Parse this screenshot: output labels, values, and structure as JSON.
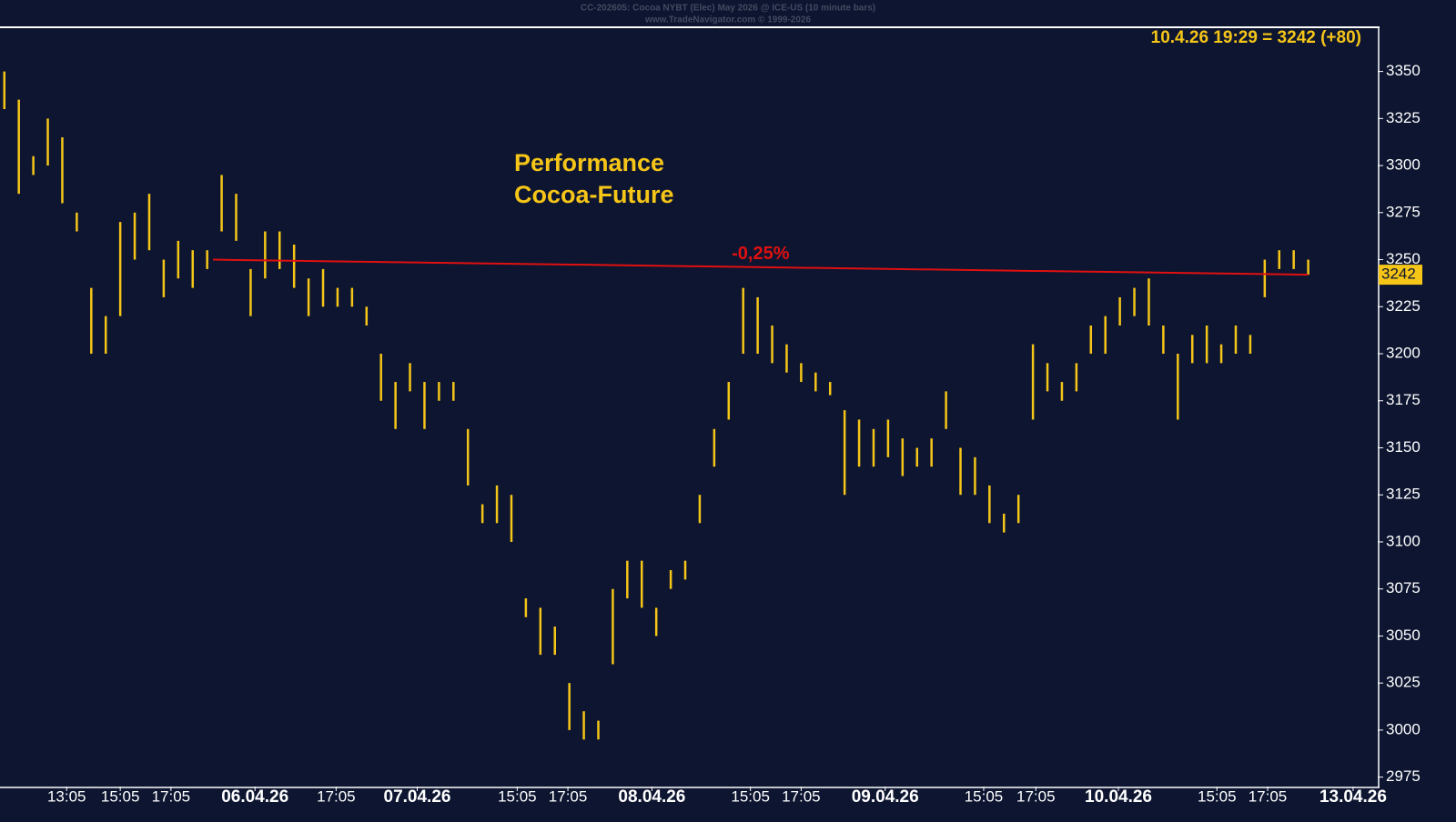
{
  "chart_data": {
    "type": "range_bar",
    "title": "CC-202605: Cocoa NYBT (Elec) May 2026 @ ICE-US  (10 minute bars)",
    "subtitle": "www.TradeNavigator.com © 1999-2026",
    "last_quote": "10.4.26 19:29 = 3242 (+80)",
    "price_marker": 3242,
    "annotation": [
      "Performance",
      "Cocoa-Future"
    ],
    "color": "#f5c518",
    "high": [
      3350,
      3335,
      3305,
      3325,
      3315,
      3275,
      3235,
      3220,
      3270,
      3275,
      3285,
      3250,
      3260,
      3255,
      3255,
      3295,
      3285,
      3245,
      3265,
      3265,
      3258,
      3240,
      3245,
      3235,
      3235,
      3225,
      3200,
      3185,
      3195,
      3185,
      3185,
      3185,
      3160,
      3120,
      3130,
      3125,
      3070,
      3065,
      3055,
      3025,
      3010,
      3005,
      3075,
      3090,
      3090,
      3065,
      3085,
      3090,
      3125,
      3160,
      3185,
      3235,
      3230,
      3215,
      3205,
      3195,
      3190,
      3185,
      3170,
      3165,
      3160,
      3165,
      3155,
      3150,
      3155,
      3180,
      3150,
      3145,
      3130,
      3115,
      3125,
      3205,
      3195,
      3185,
      3195,
      3215,
      3220,
      3230,
      3235,
      3240,
      3215,
      3200,
      3210,
      3215,
      3205,
      3215,
      3210,
      3250,
      3255,
      3255,
      3250
    ],
    "low": [
      3330,
      3285,
      3295,
      3300,
      3280,
      3265,
      3200,
      3200,
      3220,
      3250,
      3255,
      3230,
      3240,
      3235,
      3245,
      3265,
      3260,
      3220,
      3240,
      3245,
      3235,
      3220,
      3225,
      3225,
      3225,
      3215,
      3175,
      3160,
      3180,
      3160,
      3175,
      3175,
      3130,
      3110,
      3110,
      3100,
      3060,
      3040,
      3040,
      3000,
      2995,
      2995,
      3035,
      3070,
      3065,
      3050,
      3075,
      3080,
      3110,
      3140,
      3165,
      3200,
      3200,
      3195,
      3190,
      3185,
      3180,
      3178,
      3125,
      3140,
      3140,
      3145,
      3135,
      3140,
      3140,
      3160,
      3125,
      3125,
      3110,
      3105,
      3110,
      3165,
      3180,
      3175,
      3180,
      3200,
      3200,
      3215,
      3220,
      3215,
      3200,
      3165,
      3195,
      3195,
      3195,
      3200,
      3200,
      3230,
      3245,
      3245,
      3242
    ],
    "xlim": [
      -0.3,
      94.8
    ],
    "xticks": [
      {
        "value": 4.3,
        "label": "13:05"
      },
      {
        "value": 8.0,
        "label": "15:05"
      },
      {
        "value": 11.5,
        "label": "17:05"
      },
      {
        "value": 17.3,
        "label": "06.04.26"
      },
      {
        "value": 22.9,
        "label": "17:05"
      },
      {
        "value": 28.5,
        "label": "07.04.26"
      },
      {
        "value": 35.4,
        "label": "15:05"
      },
      {
        "value": 38.9,
        "label": "17:05"
      },
      {
        "value": 44.7,
        "label": "08.04.26"
      },
      {
        "value": 51.5,
        "label": "15:05"
      },
      {
        "value": 55.0,
        "label": "17:05"
      },
      {
        "value": 60.8,
        "label": "09.04.26"
      },
      {
        "value": 67.6,
        "label": "15:05"
      },
      {
        "value": 71.2,
        "label": "17:05"
      },
      {
        "value": 76.9,
        "label": "10.04.26"
      },
      {
        "value": 83.7,
        "label": "15:05"
      },
      {
        "value": 87.2,
        "label": "17:05"
      },
      {
        "value": 93.1,
        "label": "13.04.26"
      }
    ],
    "ylim": [
      2970,
      3373
    ],
    "yticks": [
      2975,
      3000,
      3025,
      3050,
      3075,
      3100,
      3125,
      3150,
      3175,
      3200,
      3225,
      3250,
      3275,
      3300,
      3325,
      3350
    ],
    "reference_line": {
      "x": [
        14.4,
        90
      ],
      "values": [
        3250,
        3242
      ],
      "label": "-0,25%",
      "color": "#e01010"
    }
  }
}
